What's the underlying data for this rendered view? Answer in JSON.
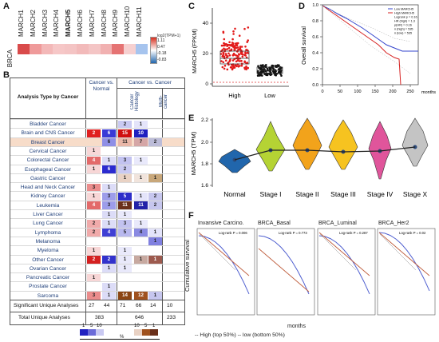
{
  "panel_a": {
    "letter": "A",
    "row_label": "BRCA",
    "genes": [
      "MARCH1",
      "MARCH2",
      "MARCH3",
      "MARCH4",
      "MARCH5",
      "MARCH6",
      "MARCH7",
      "MARCH8",
      "MARCH9",
      "MARCH10",
      "MARCH11"
    ],
    "highlight_gene": "MARCH5",
    "cell_colors": [
      "#d94b4b",
      "#ef9a9a",
      "#f3b8b8",
      "#f6c7c7",
      "#f4c4c4",
      "#f2baba",
      "#f4c5c5",
      "#f1b1b1",
      "#e57373",
      "#f6d0d0",
      "#a6c4ee"
    ],
    "colorbar": {
      "title": "log2(TPM+1)",
      "ticks": [
        "1.11",
        "0.47",
        "-0.18",
        "-0.83"
      ]
    }
  },
  "panel_b": {
    "letter": "B",
    "col_header_left": "Analysis Type by Cancer",
    "group1": "Cancer vs. Normal",
    "group2": "Cancer vs. Cancer",
    "sub1": "Cancer Histology",
    "sub2": "Multi-cancer",
    "cancers": [
      {
        "name": "Bladder Cancer",
        "cells": [
          {
            "c": 2,
            "v": "2",
            "bg": "#c9c9f2"
          },
          {
            "c": 3,
            "v": "1",
            "bg": "#e4e4fa"
          }
        ]
      },
      {
        "name": "Brain and CNS Cancer",
        "cells": [
          {
            "c": 0,
            "v": "2",
            "bg": "#e02020"
          },
          {
            "c": 1,
            "v": "6",
            "bg": "#3a3ad6"
          },
          {
            "c": 2,
            "v": "15",
            "bg": "#d01010"
          },
          {
            "c": 3,
            "v": "10",
            "bg": "#2020c0"
          }
        ]
      },
      {
        "name": "Breast Cancer",
        "hl": true,
        "cells": [
          {
            "c": 1,
            "v": "6",
            "bg": "#8f8fe6"
          },
          {
            "c": 2,
            "v": "11",
            "bg": "#e9b7a8"
          },
          {
            "c": 3,
            "v": "7",
            "bg": "#d5a6a6"
          },
          {
            "c": 4,
            "v": "2",
            "bg": "#bcbcd8"
          }
        ]
      },
      {
        "name": "Cervical Cancer",
        "cells": [
          {
            "c": 0,
            "v": "1",
            "bg": "#f7d6d6"
          }
        ]
      },
      {
        "name": "Colorectal Cancer",
        "cells": [
          {
            "c": 0,
            "v": "4",
            "bg": "#e36a6a"
          },
          {
            "c": 1,
            "v": "1",
            "bg": "#dcdcf7"
          },
          {
            "c": 2,
            "v": "3",
            "bg": "#c2c2f0"
          },
          {
            "c": 3,
            "v": "1",
            "bg": "#e9e9fb"
          }
        ]
      },
      {
        "name": "Esophageal Cancer",
        "cells": [
          {
            "c": 0,
            "v": "1",
            "bg": "#f7d6d6"
          },
          {
            "c": 1,
            "v": "6",
            "bg": "#2b2bcf"
          },
          {
            "c": 2,
            "v": "2",
            "bg": "#c9c9f2"
          }
        ]
      },
      {
        "name": "Gastric Cancer",
        "cells": [
          {
            "c": 2,
            "v": "1",
            "bg": "#e9d2c4"
          },
          {
            "c": 3,
            "v": "1",
            "bg": "#f1e4dc"
          },
          {
            "c": 4,
            "v": "1",
            "bg": "#c8a77a"
          }
        ]
      },
      {
        "name": "Head and Neck Cancer",
        "cells": [
          {
            "c": 0,
            "v": "3",
            "bg": "#ea8c8c"
          },
          {
            "c": 1,
            "v": "1",
            "bg": "#dcdcf7"
          }
        ]
      },
      {
        "name": "Kidney Cancer",
        "cells": [
          {
            "c": 0,
            "v": "1",
            "bg": "#f7d6d6"
          },
          {
            "c": 1,
            "v": "3",
            "bg": "#9d9dea"
          },
          {
            "c": 2,
            "v": "5",
            "bg": "#2d2dc9"
          },
          {
            "c": 3,
            "v": "1",
            "bg": "#e4e4fa"
          },
          {
            "c": 4,
            "v": "2",
            "bg": "#c6c6ee"
          }
        ]
      },
      {
        "name": "Leukemia",
        "cells": [
          {
            "c": 0,
            "v": "4",
            "bg": "#e36a6a"
          },
          {
            "c": 1,
            "v": "3",
            "bg": "#9d9dea"
          },
          {
            "c": 2,
            "v": "11",
            "bg": "#6a2f1a"
          },
          {
            "c": 3,
            "v": "11",
            "bg": "#2222a8"
          },
          {
            "c": 4,
            "v": "2",
            "bg": "#c6c6ee"
          }
        ]
      },
      {
        "name": "Liver Cancer",
        "cells": [
          {
            "c": 1,
            "v": "1",
            "bg": "#dcdcf7"
          },
          {
            "c": 2,
            "v": "1",
            "bg": "#e9e9fb"
          }
        ]
      },
      {
        "name": "Lung Cancer",
        "cells": [
          {
            "c": 0,
            "v": "2",
            "bg": "#f0aaaa"
          },
          {
            "c": 1,
            "v": "1",
            "bg": "#dcdcf7"
          },
          {
            "c": 2,
            "v": "3",
            "bg": "#c2c2f0"
          },
          {
            "c": 3,
            "v": "1",
            "bg": "#e9e9fb"
          }
        ]
      },
      {
        "name": "Lymphoma",
        "cells": [
          {
            "c": 0,
            "v": "2",
            "bg": "#f0aaaa"
          },
          {
            "c": 1,
            "v": "4",
            "bg": "#3f3fd4"
          },
          {
            "c": 2,
            "v": "5",
            "bg": "#b8b8ee"
          },
          {
            "c": 3,
            "v": "4",
            "bg": "#8a8ae2"
          },
          {
            "c": 4,
            "v": "1",
            "bg": "#e4e4fa"
          }
        ]
      },
      {
        "name": "Melanoma",
        "cells": [
          {
            "c": 4,
            "v": "1",
            "bg": "#8080e0"
          }
        ]
      },
      {
        "name": "Myeloma",
        "cells": [
          {
            "c": 0,
            "v": "1",
            "bg": "#f7d6d6"
          },
          {
            "c": 2,
            "v": "1",
            "bg": "#e9e9fb"
          }
        ]
      },
      {
        "name": "Other Cancer",
        "cells": [
          {
            "c": 0,
            "v": "2",
            "bg": "#d42020"
          },
          {
            "c": 1,
            "v": "2",
            "bg": "#3232cc"
          },
          {
            "c": 2,
            "v": "1",
            "bg": "#e9e9fb"
          },
          {
            "c": 3,
            "v": "1",
            "bg": "#c7a9a0"
          },
          {
            "c": 4,
            "v": "1",
            "bg": "#9d5a4e"
          }
        ]
      },
      {
        "name": "Ovarian Cancer",
        "cells": [
          {
            "c": 1,
            "v": "1",
            "bg": "#dcdcf7"
          },
          {
            "c": 2,
            "v": "1",
            "bg": "#e9e9fb"
          }
        ]
      },
      {
        "name": "Pancreatic Cancer",
        "cells": [
          {
            "c": 0,
            "v": "1",
            "bg": "#f7d6d6"
          }
        ]
      },
      {
        "name": "Prostate Cancer",
        "cells": [
          {
            "c": 1,
            "v": "1",
            "bg": "#dcdcf7"
          }
        ]
      },
      {
        "name": "Sarcoma",
        "cells": [
          {
            "c": 0,
            "v": "3",
            "bg": "#ea8c8c"
          },
          {
            "c": 1,
            "v": "1",
            "bg": "#dcdcf7"
          },
          {
            "c": 2,
            "v": "14",
            "bg": "#8b4513"
          },
          {
            "c": 3,
            "v": "12",
            "bg": "#a0521e"
          },
          {
            "c": 4,
            "v": "1",
            "bg": "#c6c6ee"
          }
        ]
      }
    ],
    "significant_label": "Significant Unique Analyses",
    "significant_values": [
      "27",
      "44",
      "71",
      "66",
      "14",
      "10"
    ],
    "total_label": "Total Unique Analyses",
    "total_values": [
      "383",
      "646",
      "233"
    ],
    "legend": {
      "blue_nums": [
        "1",
        "5",
        "10"
      ],
      "brown_nums": [
        "10",
        "5",
        "1"
      ],
      "percent": "%"
    }
  },
  "panel_c": {
    "letter": "C",
    "ylabel": "MARCH5 (FPKM)",
    "yticks": [
      "0",
      "20",
      "40"
    ],
    "groups": [
      "High",
      "Low"
    ]
  },
  "panel_d": {
    "letter": "D",
    "ylabel": "Overall survival",
    "xticks": [
      "0",
      "50",
      "100",
      "150",
      "200",
      "250"
    ],
    "xunit": "months",
    "yticks": [
      "0.0",
      "0.2",
      "0.4",
      "0.6",
      "0.8",
      "1.0"
    ],
    "legend_lines": [
      "Low MARCH5",
      "High MARCH5",
      "Logrank p = 0.16",
      "HR (high) = 1.3",
      "p(HR) = 0.16",
      "n (high) = 535",
      "n (low) = 535"
    ]
  },
  "panel_e": {
    "letter": "E",
    "ylabel": "MARCH5 (TPM)",
    "yticks": [
      "1.6",
      "1.8",
      "2.0",
      "2.2"
    ],
    "stages": [
      "Normal",
      "Stage I",
      "Stage II",
      "Stage III",
      "Stage IV",
      "Stage X"
    ],
    "colors": [
      "#2166ac",
      "#b5d334",
      "#f2a31b",
      "#f6c320",
      "#e0559b",
      "#c4c4c4"
    ]
  },
  "panel_f": {
    "letter": "F",
    "ylabel": "Cumulative survival",
    "xlabel": "months",
    "plots": [
      {
        "title": "Invansive Carcino.",
        "logrank": "Log-rank P = 0.006"
      },
      {
        "title": "BRCA_Basal",
        "logrank": "Log-rank P = 0.773"
      },
      {
        "title": "BRCA_Luminal",
        "logrank": "Log-rank P = 0.287"
      },
      {
        "title": "BRCA_Her2",
        "logrank": "Log-rank P = 0.02"
      }
    ],
    "legend": "-- High (top 50%) -- low (bottom 50%)"
  }
}
